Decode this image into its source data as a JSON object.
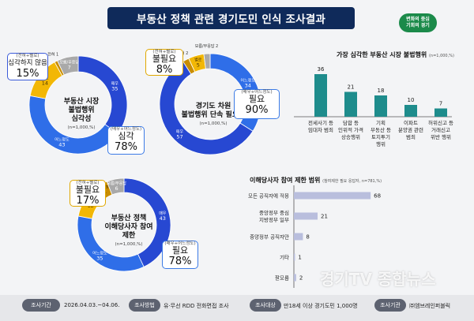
{
  "header": {
    "title": "부동산 정책 관련 경기도민 인식 조사결과"
  },
  "logo": {
    "line1": "변화의 중심",
    "line2": "기회의 경기"
  },
  "donuts": [
    {
      "title_lines": [
        "부동산 시장",
        "불법행위",
        "심각성"
      ],
      "base": "(n=1,000,%)",
      "segments": [
        {
          "key": "very",
          "label": "매우",
          "value": 35,
          "color": "#2748d2"
        },
        {
          "key": "some",
          "label": "어느정도",
          "value": 43,
          "color": "#2f6ee8"
        },
        {
          "key": "not_much",
          "label": "별로",
          "value": 14,
          "color": "#f2b705"
        },
        {
          "key": "not_at_all",
          "label": "전혀",
          "value": 1,
          "color": "#c98d00"
        },
        {
          "key": "dk",
          "label": "모름/무응답",
          "value": 7,
          "color": "#a9a9a9"
        }
      ],
      "callout_pos": {
        "sub": "(매우+어느정도)",
        "label": "심각",
        "pct": "78%"
      },
      "callout_neg": {
        "sub": "(전혀+별로)",
        "label": "심각하지 않음",
        "pct": "15%"
      }
    },
    {
      "title_lines": [
        "경기도 차원",
        "불법행위 단속 필요성"
      ],
      "base": "(n=1,000,%)",
      "segments": [
        {
          "key": "some",
          "label": "어느정도",
          "value": 34,
          "color": "#2f6ee8"
        },
        {
          "key": "very",
          "label": "매우",
          "value": 57,
          "color": "#2748d2"
        },
        {
          "key": "not_at_all",
          "label": "전혀",
          "value": 2,
          "color": "#c98d00"
        },
        {
          "key": "not_much",
          "label": "별로",
          "value": 5,
          "color": "#f2b705"
        },
        {
          "key": "dk",
          "label": "모름/무응답",
          "value": 2,
          "color": "#a9a9a9"
        }
      ],
      "callout_pos": {
        "sub": "(매우+어느정도)",
        "label": "필요",
        "pct": "90%"
      },
      "callout_neg": {
        "sub": "(전혀+별로)",
        "label": "불필요",
        "pct": "8%"
      }
    },
    {
      "title_lines": [
        "부동산 정책",
        "이해당사자 참여",
        "제한"
      ],
      "base": "(n=1,000,%)",
      "segments": [
        {
          "key": "very",
          "label": "매우",
          "value": 43,
          "color": "#2748d2"
        },
        {
          "key": "some",
          "label": "어느정도",
          "value": 35,
          "color": "#2f6ee8"
        },
        {
          "key": "not_much",
          "label": "별로",
          "value": 12,
          "color": "#f2b705"
        },
        {
          "key": "not_at_all",
          "label": "전혀",
          "value": 4,
          "color": "#c98d00"
        },
        {
          "key": "dk",
          "label": "모름/무응답",
          "value": 6,
          "color": "#a9a9a9"
        }
      ],
      "callout_pos": {
        "sub": "(매우+어느정도)",
        "label": "필요",
        "pct": "78%"
      },
      "callout_neg": {
        "sub": "(전혀+별로)",
        "label": "불필요",
        "pct": "17%"
      }
    }
  ],
  "chart_data": [
    {
      "type": "bar",
      "title": "가장 심각한 부동산 시장 불법행위",
      "base": "(n=1,000,%)",
      "categories": [
        [
          "전세사기 등",
          "임대차 범죄"
        ],
        [
          "담합 등",
          "인위적 가격",
          "상승행위"
        ],
        [
          "기획",
          "부동산 등",
          "토지투기",
          "행위"
        ],
        [
          "이파트",
          "분양권 관련",
          "범죄"
        ],
        [
          "허위신고 등",
          "거래신고",
          "위반 행위"
        ]
      ],
      "values": [
        36,
        21,
        18,
        10,
        7
      ],
      "color": "#1e8c8c"
    },
    {
      "type": "bar",
      "orientation": "horizontal",
      "title": "이해당사자 참여 제한 범위",
      "base": "(참여제한 필요 응답자, n=781,%)",
      "categories": [
        "모든 공직자에 적용",
        [
          "중앙정부 중심",
          "지방정부 일부"
        ],
        "중앙정부 공직자만",
        "기타",
        "잘모름"
      ],
      "values": [
        68,
        21,
        8,
        1,
        2
      ],
      "color": "#b9bedd"
    }
  ],
  "footer": {
    "period_label": "조사기간",
    "period": "2026.04.03.~04.06.",
    "method_label": "조사방법",
    "method": "유·무선 RDD 전화면접 조사",
    "target_label": "조사대상",
    "target": "만18세 이상 경기도민 1,000명",
    "agency_label": "조사기관",
    "agency": "㈜엠브레인퍼블릭"
  },
  "watermark": "경기TV 종합뉴스"
}
